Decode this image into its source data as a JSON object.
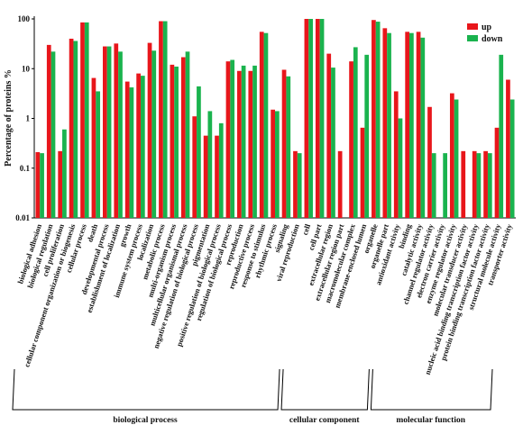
{
  "chart_data": {
    "type": "bar",
    "log_scale": true,
    "y_label": "Percentage of proteins %",
    "categories": [
      "biological adhesion",
      "biological regulation",
      "cell proliferation",
      "cellular component organization or biogenesis",
      "cellular process",
      "death",
      "developmental process",
      "establishment of localization",
      "growth",
      "immune system process",
      "localization",
      "metabolic process",
      "multi-organism process",
      "multicellular organismal process",
      "negative regulation of biological process",
      "pigmentation",
      "positive regulation of biological process",
      "regulation of biological process",
      "reproduction",
      "reproductive process",
      "response to stimulus",
      "rhythmic process",
      "signaling",
      "viral reproduction",
      "cell",
      "cell part",
      "extracellular region",
      "extracellular region part",
      "macromolecular complex",
      "membrane-enclosed lumen",
      "organelle",
      "organelle part",
      "antioxidant activity",
      "binding",
      "catalytic activity",
      "channel regulator activity",
      "electron carrier activity",
      "enzyme regulator activity",
      "molecular transducer activity",
      "nucleic acid binding transcription factor activity",
      "protein binding transcription factor activity",
      "structural molecule activity",
      "transporter activity"
    ],
    "series": [
      {
        "name": "up",
        "color": "#e8161b",
        "values": [
          0.21,
          30,
          0.22,
          40,
          85,
          6.5,
          28,
          32,
          5.5,
          8,
          33,
          90,
          12,
          17,
          1.1,
          0.45,
          0.45,
          14,
          9,
          9,
          55,
          1.5,
          9.5,
          0.22,
          100,
          100,
          20,
          0.22,
          14,
          0.65,
          95,
          65,
          3.5,
          55,
          55,
          1.7,
          null,
          3.2,
          0.22,
          0.22,
          0.22,
          0.65,
          6
        ]
      },
      {
        "name": "down",
        "color": "#1ab34e",
        "values": [
          0.2,
          22,
          0.6,
          36,
          85,
          3.5,
          28,
          22,
          4.2,
          7.2,
          23,
          90,
          11,
          22,
          4.4,
          1.4,
          0.8,
          15,
          11.5,
          11.5,
          52,
          1.4,
          7,
          0.2,
          100,
          100,
          10.5,
          null,
          27,
          19,
          88,
          52,
          1,
          52,
          42,
          0.2,
          0.2,
          2.4,
          null,
          0.2,
          0.2,
          19,
          2.4
        ]
      }
    ],
    "ylim": [
      0.01,
      100
    ],
    "yticks": [
      0.01,
      0.1,
      1,
      10,
      100
    ],
    "legend": "top-right",
    "groups": [
      "biological process",
      "cellular component",
      "molecular function"
    ]
  }
}
